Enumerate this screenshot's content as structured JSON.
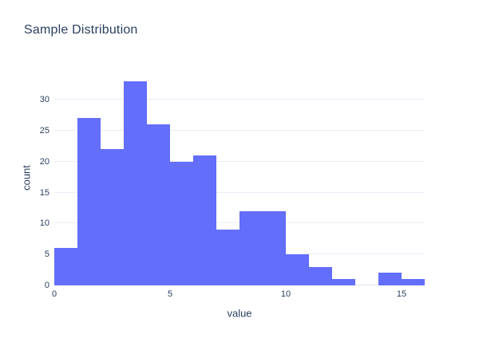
{
  "colors": {
    "bar": "#636EFA",
    "text": "#2A3F5F",
    "grid": "#E8EEF6",
    "zeroline": "#DCE3EE",
    "background": "#FFFFFF"
  },
  "chart_data": {
    "type": "bar",
    "subtype": "histogram",
    "title": "Sample Distribution",
    "xlabel": "value",
    "ylabel": "count",
    "bin_start": 0,
    "bin_width": 1,
    "bin_ranges": [
      "0-1",
      "1-2",
      "2-3",
      "3-4",
      "4-5",
      "5-6",
      "6-7",
      "7-8",
      "8-9",
      "9-10",
      "10-11",
      "11-12",
      "12-13",
      "13-14",
      "14-15",
      "15-16"
    ],
    "values": [
      6,
      27,
      22,
      33,
      26,
      20,
      21,
      9,
      12,
      12,
      5,
      3,
      1,
      0,
      2,
      1
    ],
    "xlim": [
      0,
      16
    ],
    "ylim": [
      0,
      34.9
    ],
    "x_ticks": [
      0,
      5,
      10,
      15
    ],
    "y_ticks": [
      0,
      5,
      10,
      15,
      20,
      25,
      30
    ],
    "grid": true,
    "legend": false
  }
}
